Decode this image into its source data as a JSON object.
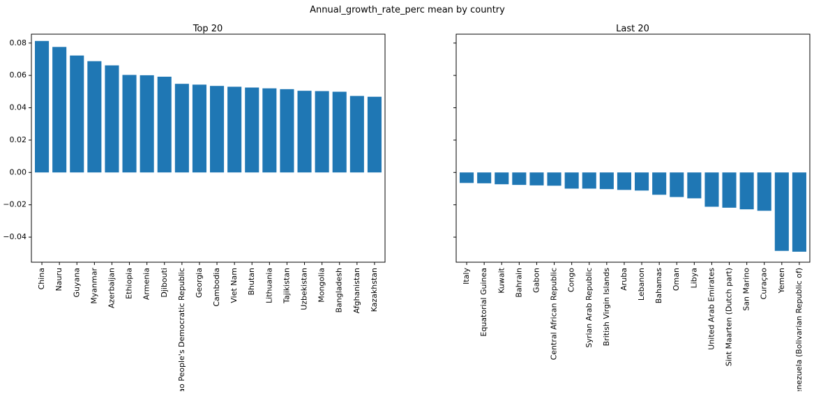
{
  "figure_title": "Annual_growth_rate_perc mean by country",
  "chart_data": [
    {
      "type": "bar",
      "title": "Top 20",
      "xlabel": "",
      "ylabel": "",
      "ylim": [
        -0.0555,
        0.0855
      ],
      "yticks": [
        -0.04,
        -0.02,
        0.0,
        0.02,
        0.04,
        0.06,
        0.08
      ],
      "ytick_labels": [
        "−0.04",
        "−0.02",
        "0.00",
        "0.02",
        "0.04",
        "0.06",
        "0.08"
      ],
      "categories": [
        "China",
        "Nauru",
        "Guyana",
        "Myanmar",
        "Azerbaijan",
        "Ethiopia",
        "Armenia",
        "Djibouti",
        "Lao People's Democratic Republic",
        "Georgia",
        "Cambodia",
        "Viet Nam",
        "Bhutan",
        "Lithuania",
        "Tajikistan",
        "Uzbekistan",
        "Mongolia",
        "Bangladesh",
        "Afghanistan",
        "Kazakhstan"
      ],
      "values": [
        0.0813,
        0.0776,
        0.0723,
        0.0688,
        0.0662,
        0.0603,
        0.0601,
        0.0592,
        0.0548,
        0.0543,
        0.0535,
        0.053,
        0.0525,
        0.052,
        0.0515,
        0.0505,
        0.0503,
        0.0499,
        0.0473,
        0.0468
      ],
      "grid": false,
      "show_ytick_labels": true
    },
    {
      "type": "bar",
      "title": "Last 20",
      "xlabel": "",
      "ylabel": "",
      "ylim": [
        -0.0555,
        0.0855
      ],
      "yticks": [
        -0.04,
        -0.02,
        0.0,
        0.02,
        0.04,
        0.06,
        0.08
      ],
      "categories": [
        "Italy",
        "Equatorial Guinea",
        "Kuwait",
        "Bahrain",
        "Gabon",
        "Central African Republic",
        "Congo",
        "Syrian Arab Republic",
        "British Virgin Islands",
        "Aruba",
        "Lebanon",
        "Bahamas",
        "Oman",
        "Libya",
        "United Arab Emirates",
        "Sint Maarten (Dutch part)",
        "San Marino",
        "Curaçao",
        "Yemen",
        "Venezuela (Bolivarian Republic of)"
      ],
      "values": [
        -0.0065,
        -0.0067,
        -0.0073,
        -0.0077,
        -0.008,
        -0.0082,
        -0.01,
        -0.01,
        -0.0103,
        -0.0108,
        -0.0112,
        -0.0138,
        -0.0152,
        -0.016,
        -0.0212,
        -0.0218,
        -0.0228,
        -0.0237,
        -0.0485,
        -0.049
      ],
      "grid": false,
      "show_ytick_labels": false
    }
  ]
}
